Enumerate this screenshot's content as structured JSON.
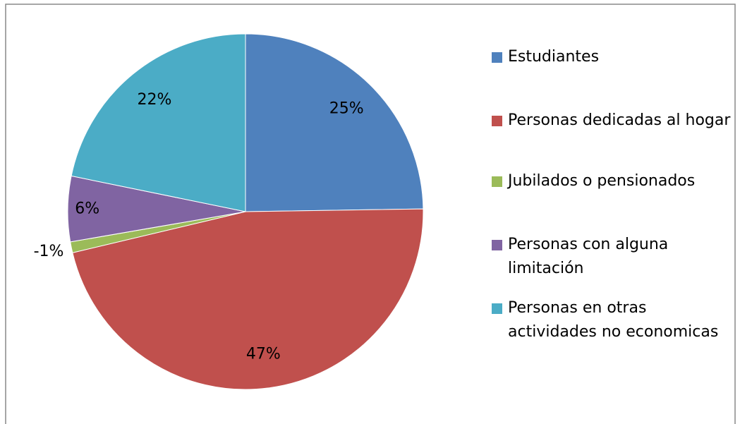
{
  "chart_data": {
    "type": "pie",
    "categories": [
      "Estudiantes",
      "Personas dedicadas al hogar",
      "Jubilados o pensionados",
      "Personas con alguna limitación",
      "Personas en otras actividades no economicas"
    ],
    "values": [
      25,
      47,
      -1,
      6,
      22
    ],
    "colors": [
      "#4f81bd",
      "#c0504d",
      "#9bbb59",
      "#8064a2",
      "#4bacc6"
    ],
    "value_labels": [
      "25%",
      "47%",
      "-1%",
      "6%",
      "22%"
    ],
    "legend": "right"
  }
}
